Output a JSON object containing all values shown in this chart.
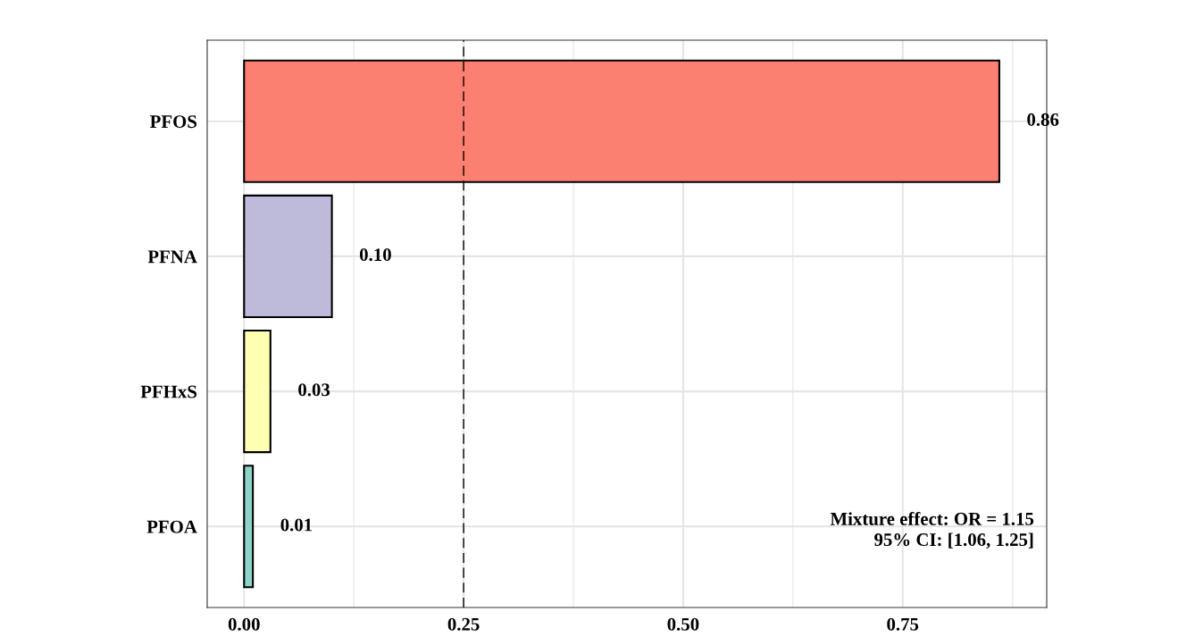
{
  "chart_data": {
    "type": "bar",
    "orientation": "horizontal",
    "categories": [
      "PFOS",
      "PFNA",
      "PFHxS",
      "PFOA"
    ],
    "values": [
      0.86,
      0.1,
      0.03,
      0.01
    ],
    "value_labels": [
      "0.86",
      "0.10",
      "0.03",
      "0.01"
    ],
    "colors": [
      "#fb8072",
      "#bebada",
      "#ffffb3",
      "#8dd3c7"
    ],
    "xlim": [
      -0.042,
      0.914
    ],
    "xticks": [
      {
        "value": 0,
        "label": "0.00"
      },
      {
        "value": 0.25,
        "label": "0.25"
      },
      {
        "value": 0.5,
        "label": "0.50"
      },
      {
        "value": 0.75,
        "label": "0.75"
      }
    ],
    "ref_lines": [
      {
        "axis": "x",
        "value": 0.25,
        "label": null,
        "color": "#000000",
        "line_style": "dashed"
      }
    ],
    "annotations": [
      "Mixture effect: OR = 1.15\n95% CI: [1.06, 1.25]"
    ],
    "grid": true
  }
}
